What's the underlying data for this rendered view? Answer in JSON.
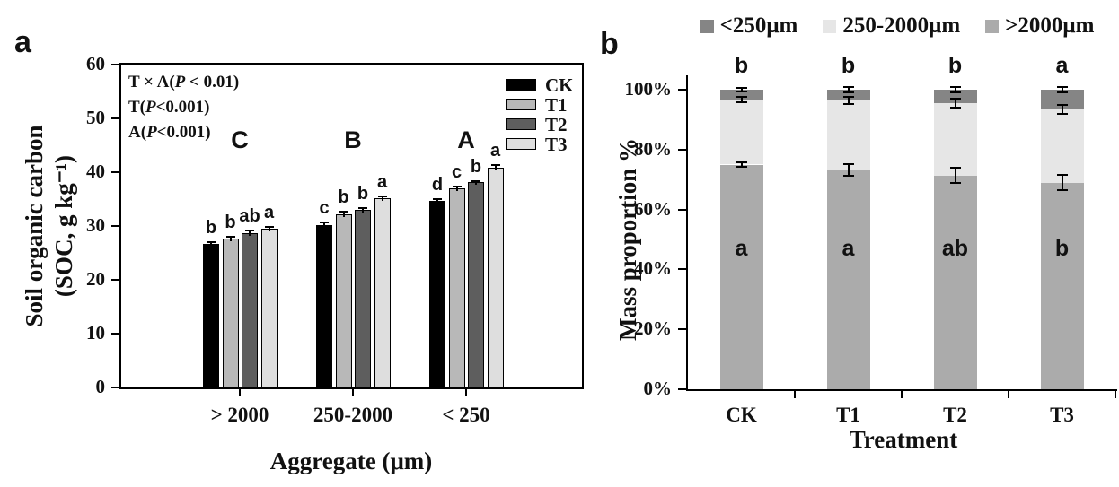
{
  "figure": {
    "panel_a_label": "a",
    "panel_b_label": "b"
  },
  "chart_data": [
    {
      "id": "soc-by-aggregate",
      "panel": "a",
      "type": "bar",
      "ylabel_line1": "Soil organic carbon",
      "ylabel_line2": "(SOC, g kg⁻¹)",
      "xlabel": "Aggregate (μm)",
      "ylim": [
        0,
        60
      ],
      "yticks": [
        0,
        10,
        20,
        30,
        40,
        50,
        60
      ],
      "categories": [
        "> 2000",
        "250-2000",
        "< 250"
      ],
      "group_letters": [
        "C",
        "B",
        "A"
      ],
      "annotations": [
        "T × A(P < 0.01)",
        "T(P<0.001)",
        "A(P<0.001)"
      ],
      "legend_position": "upper right inside",
      "grid": "off",
      "series": [
        {
          "name": "CK",
          "color": "#000000",
          "values": [
            26.7,
            30.2,
            34.7
          ],
          "errors": [
            0.3,
            0.4,
            0.3
          ],
          "letters": [
            "b",
            "c",
            "d"
          ]
        },
        {
          "name": "T1",
          "color": "#b8b8b8",
          "values": [
            27.7,
            32.2,
            37.0
          ],
          "errors": [
            0.3,
            0.4,
            0.3
          ],
          "letters": [
            "b",
            "b",
            "c"
          ]
        },
        {
          "name": "T2",
          "color": "#5e5e5e",
          "values": [
            28.7,
            33.0,
            38.1
          ],
          "errors": [
            0.4,
            0.3,
            0.2
          ],
          "letters": [
            "ab",
            "b",
            "b"
          ]
        },
        {
          "name": "T3",
          "color": "#dedede",
          "values": [
            29.5,
            35.1,
            40.9
          ],
          "errors": [
            0.4,
            0.4,
            0.4
          ],
          "letters": [
            "a",
            "a",
            "a"
          ]
        }
      ]
    },
    {
      "id": "mass-proportion",
      "panel": "b",
      "type": "stacked-bar",
      "ylabel": "Mass proportion %",
      "xlabel": "Treatment",
      "ylim": [
        0,
        100
      ],
      "ytick_values": [
        0,
        20,
        40,
        60,
        80,
        100
      ],
      "ytick_labels": [
        "0%",
        "20%",
        "40%",
        "60%",
        "80%",
        "100%"
      ],
      "categories": [
        "CK",
        "T1",
        "T2",
        "T3"
      ],
      "legend_position": "top",
      "grid": "off",
      "legend": [
        {
          "name": "<250μm",
          "color": "#858585"
        },
        {
          "name": "250-2000μm",
          "color": "#e6e6e6"
        },
        {
          "name": ">2000μm",
          "color": "#ababab"
        }
      ],
      "series": [
        {
          "name": ">2000μm",
          "color": "#ababab",
          "values": [
            75.0,
            73.2,
            71.4,
            69.0
          ],
          "errors": [
            0.8,
            2.0,
            2.5,
            2.5
          ]
        },
        {
          "name": "250-2000μm",
          "color": "#e6e6e6",
          "values": [
            21.6,
            23.2,
            24.1,
            24.3
          ],
          "errors": [
            0.9,
            1.3,
            1.4,
            1.5
          ]
        },
        {
          "name": "<250μm",
          "color": "#858585",
          "values": [
            3.4,
            3.6,
            4.5,
            6.7
          ],
          "errors": [
            0.5,
            0.8,
            1.0,
            0.8
          ]
        }
      ],
      "top_letters": [
        "b",
        "b",
        "b",
        "a"
      ],
      "segment_letters": [
        "a",
        "a",
        "ab",
        "b"
      ]
    }
  ]
}
